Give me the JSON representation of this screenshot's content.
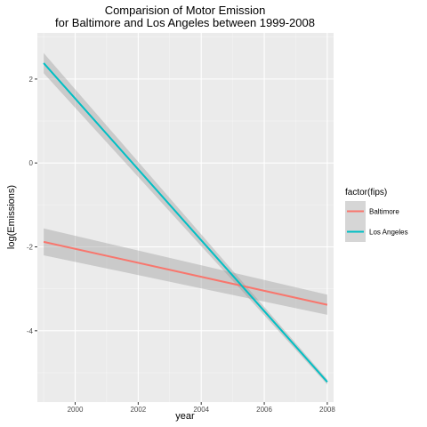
{
  "chart_data": {
    "type": "line",
    "title_line1": "Comparision of Motor Emission",
    "title_line2": "for Baltimore and Los Angeles between 1999-2008",
    "xlabel": "year",
    "ylabel": "log(Emissions)",
    "xlim": [
      1998.8,
      2008.2
    ],
    "ylim": [
      -5.7,
      3.1
    ],
    "xticks": [
      2000,
      2002,
      2004,
      2006,
      2008
    ],
    "yticks": [
      -4,
      -2,
      0,
      2
    ],
    "grid": true,
    "legend": {
      "title": "factor(fips)",
      "position": "right"
    },
    "series": [
      {
        "name": "Baltimore",
        "color": "#F8766D",
        "x": [
          1999,
          2008
        ],
        "y": [
          -1.88,
          -3.38
        ],
        "ci_lower": [
          -2.2,
          -3.62
        ],
        "ci_upper": [
          -1.56,
          -3.14
        ]
      },
      {
        "name": "Los Angeles",
        "color": "#00BFC4",
        "x": [
          1999,
          2008
        ],
        "y": [
          2.38,
          -5.22
        ],
        "ci_lower": [
          2.14,
          -5.28
        ],
        "ci_upper": [
          2.62,
          -5.16
        ]
      }
    ],
    "colors": {
      "panel": "#EBEBEB",
      "grid_major": "#FFFFFF",
      "ribbon": "#999999"
    }
  }
}
